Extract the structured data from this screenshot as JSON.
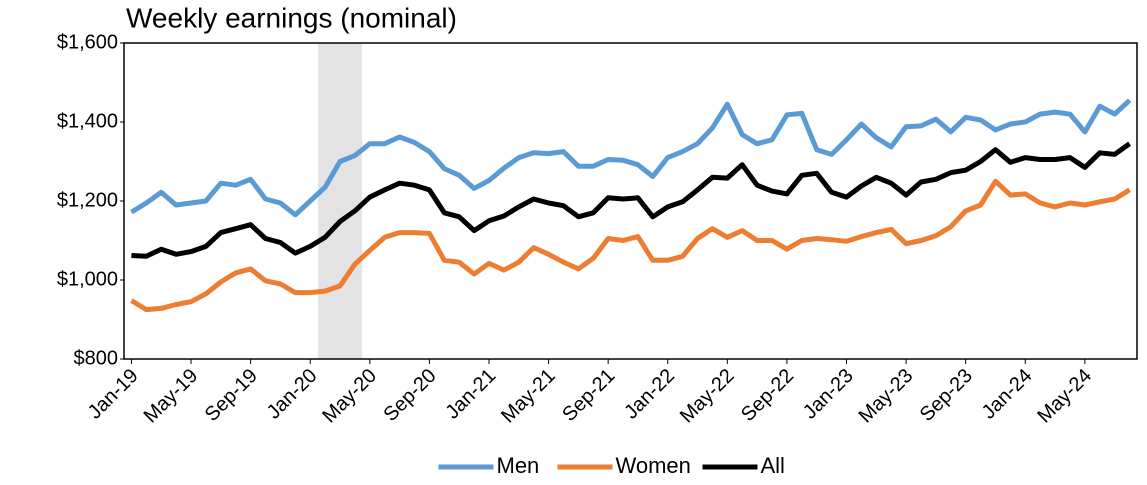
{
  "chart_data": {
    "type": "line",
    "title": "Weekly earnings (nominal)",
    "categories": [
      "Jan-19",
      null,
      null,
      null,
      "May-19",
      null,
      null,
      null,
      "Sep-19",
      null,
      null,
      null,
      "Jan-20",
      null,
      null,
      null,
      "May-20",
      null,
      null,
      null,
      "Sep-20",
      null,
      null,
      null,
      "Jan-21",
      null,
      null,
      null,
      "May-21",
      null,
      null,
      null,
      "Sep-21",
      null,
      null,
      null,
      "Jan-22",
      null,
      null,
      null,
      "May-22",
      null,
      null,
      null,
      "Sep-22",
      null,
      null,
      null,
      "Jan-23",
      null,
      null,
      null,
      "May-23",
      null,
      null,
      null,
      "Sep-23",
      null,
      null,
      null,
      "Jan-24",
      null,
      null,
      null,
      "May-24",
      null,
      null,
      null
    ],
    "series": [
      {
        "name": "Men",
        "color": "#5b9bd5",
        "values": [
          1172,
          1195,
          1222,
          1190,
          1195,
          1200,
          1245,
          1240,
          1255,
          1205,
          1195,
          1165,
          1200,
          1235,
          1300,
          1315,
          1345,
          1345,
          1362,
          1348,
          1325,
          1282,
          1265,
          1232,
          1252,
          1283,
          1310,
          1322,
          1320,
          1325,
          1288,
          1288,
          1305,
          1303,
          1292,
          1262,
          1310,
          1325,
          1345,
          1385,
          1445,
          1368,
          1345,
          1355,
          1418,
          1422,
          1330,
          1318,
          1355,
          1395,
          1360,
          1337,
          1388,
          1390,
          1407,
          1375,
          1412,
          1405,
          1380,
          1395,
          1400,
          1420,
          1425,
          1420,
          1375,
          1440,
          1420,
          1455
        ]
      },
      {
        "name": "Women",
        "color": "#ed7d31",
        "values": [
          948,
          925,
          928,
          938,
          945,
          965,
          995,
          1018,
          1028,
          998,
          990,
          968,
          968,
          972,
          985,
          1040,
          1075,
          1108,
          1120,
          1120,
          1118,
          1050,
          1045,
          1015,
          1042,
          1025,
          1045,
          1082,
          1065,
          1045,
          1028,
          1055,
          1105,
          1100,
          1110,
          1050,
          1050,
          1060,
          1105,
          1130,
          1108,
          1125,
          1100,
          1100,
          1078,
          1100,
          1105,
          1102,
          1098,
          1110,
          1120,
          1128,
          1092,
          1100,
          1112,
          1135,
          1175,
          1190,
          1250,
          1215,
          1218,
          1195,
          1185,
          1195,
          1190,
          1198,
          1205,
          1228
        ]
      },
      {
        "name": "All",
        "color": "#000000",
        "values": [
          1062,
          1060,
          1078,
          1065,
          1072,
          1085,
          1120,
          1130,
          1140,
          1105,
          1095,
          1068,
          1085,
          1108,
          1148,
          1175,
          1210,
          1228,
          1245,
          1240,
          1228,
          1170,
          1160,
          1125,
          1150,
          1162,
          1185,
          1205,
          1195,
          1188,
          1160,
          1170,
          1208,
          1205,
          1208,
          1160,
          1185,
          1198,
          1228,
          1260,
          1258,
          1292,
          1240,
          1225,
          1218,
          1265,
          1270,
          1222,
          1210,
          1238,
          1260,
          1245,
          1215,
          1248,
          1255,
          1272,
          1278,
          1300,
          1330,
          1298,
          1310,
          1305,
          1305,
          1310,
          1285,
          1322,
          1318,
          1345
        ]
      }
    ],
    "ylim": [
      800,
      1600
    ],
    "yticks": [
      {
        "value": 800,
        "label": "$800"
      },
      {
        "value": 1000,
        "label": "$1,000"
      },
      {
        "value": 1200,
        "label": "$1,200"
      },
      {
        "value": 1400,
        "label": "$1,400"
      },
      {
        "value": 1600,
        "label": "$1,600"
      }
    ],
    "grid": false,
    "legend": "bottom"
  }
}
